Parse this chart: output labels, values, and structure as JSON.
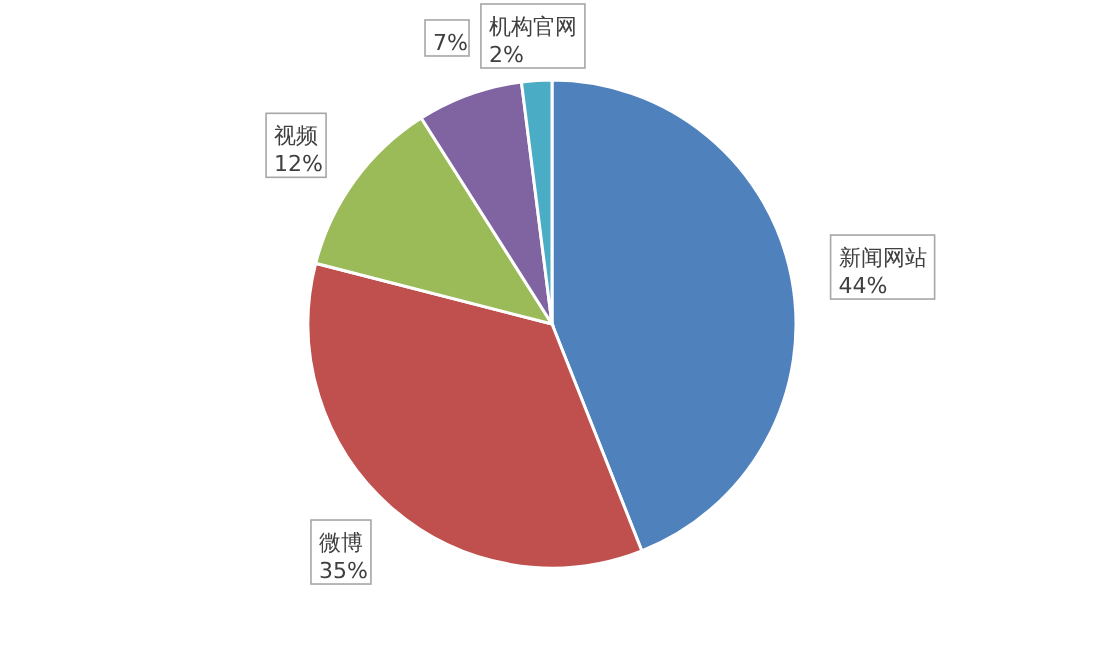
{
  "chart_data": {
    "type": "pie",
    "categories": [
      "新闻网站",
      "微博",
      "视频",
      null,
      "机构官网"
    ],
    "values": [
      44,
      35,
      12,
      7,
      2
    ],
    "colors": [
      "#4f81bd",
      "#c0504d",
      "#9bbb59",
      "#8064a2",
      "#4bacc6"
    ],
    "value_labels": [
      "44%",
      "35%",
      "12%",
      "7%",
      "2%"
    ]
  }
}
